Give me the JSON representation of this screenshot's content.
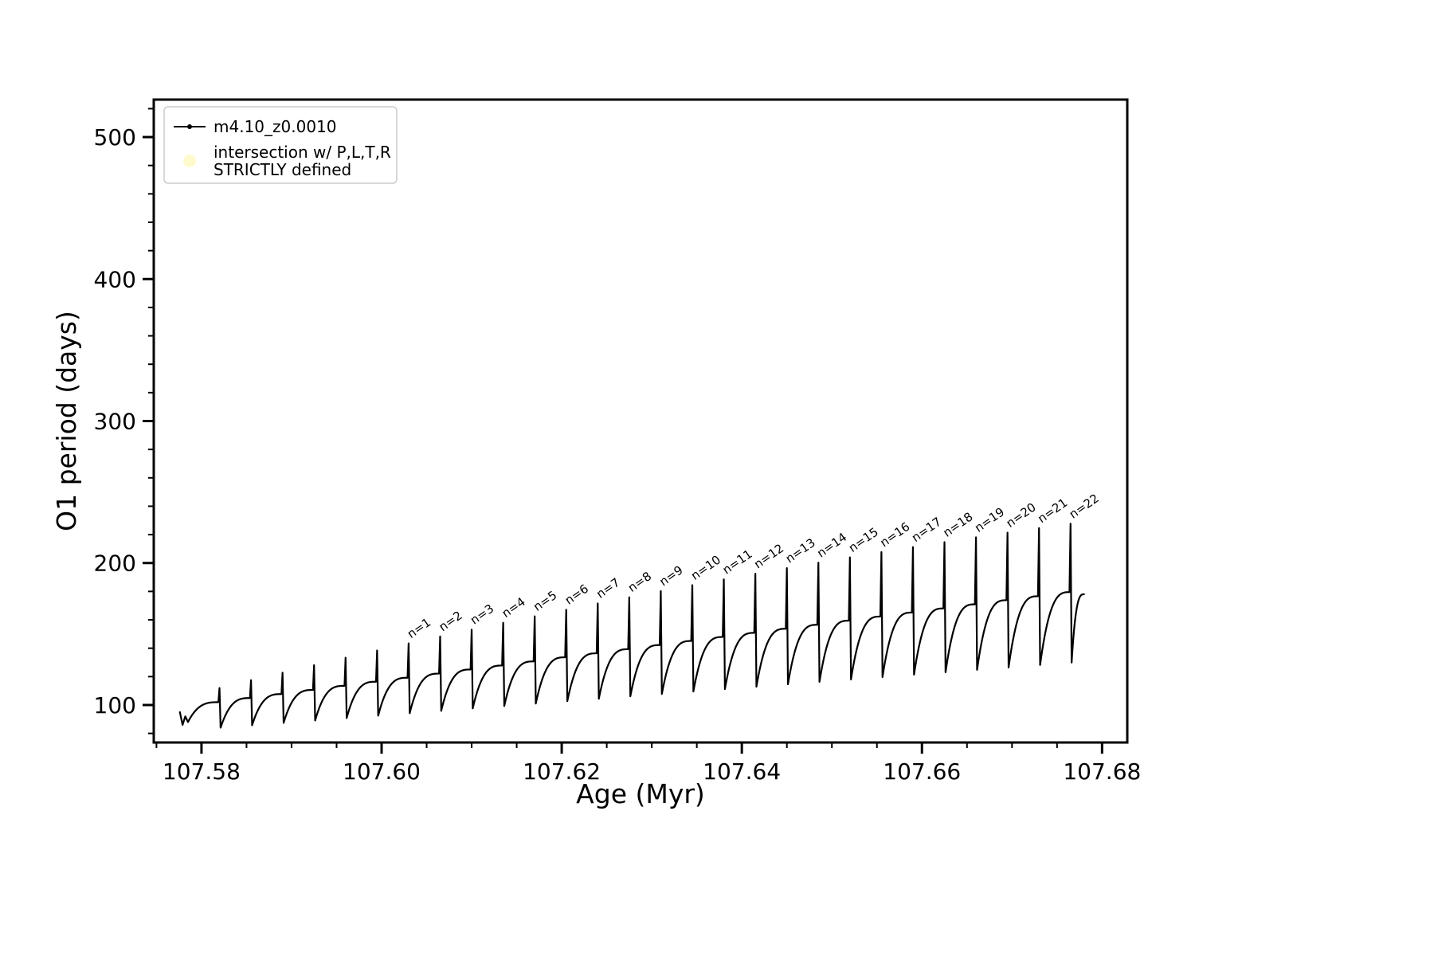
{
  "chart_data": {
    "type": "line",
    "title": "",
    "xlabel": "Age (Myr)",
    "ylabel": "O1 period (days)",
    "xlim": [
      107.5747,
      107.6828
    ],
    "ylim": [
      73.6,
      526.4
    ],
    "xticks": [
      {
        "v": 107.58,
        "label": "107.58"
      },
      {
        "v": 107.6,
        "label": "107.60"
      },
      {
        "v": 107.62,
        "label": "107.62"
      },
      {
        "v": 107.64,
        "label": "107.64"
      },
      {
        "v": 107.66,
        "label": "107.66"
      },
      {
        "v": 107.68,
        "label": "107.68"
      }
    ],
    "yticks": [
      {
        "v": 100,
        "label": "100"
      },
      {
        "v": 200,
        "label": "200"
      },
      {
        "v": 300,
        "label": "300"
      },
      {
        "v": 400,
        "label": "400"
      },
      {
        "v": 500,
        "label": "500"
      }
    ],
    "x_minor": {
      "start": 107.575,
      "step": 0.005,
      "count": 22
    },
    "y_minor": {
      "start": 80,
      "step": 20,
      "end": 520
    },
    "grid": false,
    "legend_position": "upper-left",
    "legend": [
      {
        "label": "m4.10_z0.0010",
        "marker": "line-dot",
        "color": "#000000"
      },
      {
        "label": "intersection w/ P,L,T,R\nSTRICTLY defined",
        "marker": "dot",
        "color": "#fffacd"
      }
    ],
    "series_name": "m4.10_z0.0010",
    "series_color": "#000000",
    "start_points": [
      [
        107.5776,
        95
      ],
      [
        107.5779,
        86
      ],
      [
        107.5782,
        92
      ],
      [
        107.5785,
        88
      ]
    ],
    "cycle": {
      "spike_half_width": 0.00012,
      "rise_samples": 26
    },
    "spikes": [
      {
        "x": 107.582,
        "peak": 112.0,
        "plateau": 102.0,
        "min_after": 84.0,
        "label": null
      },
      {
        "x": 107.5855,
        "peak": 117.5,
        "plateau": 104.9,
        "min_after": 85.7,
        "label": null
      },
      {
        "x": 107.589,
        "peak": 122.8,
        "plateau": 107.7,
        "min_after": 87.4,
        "label": null
      },
      {
        "x": 107.5925,
        "peak": 128.1,
        "plateau": 110.6,
        "min_after": 89.1,
        "label": null
      },
      {
        "x": 107.596,
        "peak": 133.3,
        "plateau": 113.5,
        "min_after": 90.8,
        "label": null
      },
      {
        "x": 107.5995,
        "peak": 138.4,
        "plateau": 116.4,
        "min_after": 92.5,
        "label": null
      },
      {
        "x": 107.603,
        "peak": 143.4,
        "plateau": 119.2,
        "min_after": 94.2,
        "label": "n=1"
      },
      {
        "x": 107.6065,
        "peak": 148.3,
        "plateau": 122.1,
        "min_after": 95.9,
        "label": "n=2"
      },
      {
        "x": 107.61,
        "peak": 153.1,
        "plateau": 125.0,
        "min_after": 97.6,
        "label": "n=3"
      },
      {
        "x": 107.6135,
        "peak": 157.9,
        "plateau": 127.8,
        "min_after": 99.3,
        "label": "n=4"
      },
      {
        "x": 107.617,
        "peak": 162.5,
        "plateau": 130.7,
        "min_after": 101.0,
        "label": "n=5"
      },
      {
        "x": 107.6205,
        "peak": 167.1,
        "plateau": 133.6,
        "min_after": 102.7,
        "label": "n=6"
      },
      {
        "x": 107.624,
        "peak": 171.5,
        "plateau": 136.4,
        "min_after": 104.4,
        "label": "n=7"
      },
      {
        "x": 107.6275,
        "peak": 175.9,
        "plateau": 139.3,
        "min_after": 106.1,
        "label": "n=8"
      },
      {
        "x": 107.631,
        "peak": 180.2,
        "plateau": 142.2,
        "min_after": 107.8,
        "label": "n=9"
      },
      {
        "x": 107.6345,
        "peak": 184.4,
        "plateau": 145.1,
        "min_after": 109.5,
        "label": "n=10"
      },
      {
        "x": 107.638,
        "peak": 188.5,
        "plateau": 147.9,
        "min_after": 111.2,
        "label": "n=11"
      },
      {
        "x": 107.6415,
        "peak": 192.5,
        "plateau": 150.8,
        "min_after": 112.9,
        "label": "n=12"
      },
      {
        "x": 107.645,
        "peak": 196.4,
        "plateau": 153.7,
        "min_after": 114.6,
        "label": "n=13"
      },
      {
        "x": 107.6485,
        "peak": 200.3,
        "plateau": 156.5,
        "min_after": 116.3,
        "label": "n=14"
      },
      {
        "x": 107.652,
        "peak": 204.0,
        "plateau": 159.4,
        "min_after": 118.0,
        "label": "n=15"
      },
      {
        "x": 107.6555,
        "peak": 207.7,
        "plateau": 162.3,
        "min_after": 119.7,
        "label": "n=16"
      },
      {
        "x": 107.659,
        "peak": 211.2,
        "plateau": 165.1,
        "min_after": 121.4,
        "label": "n=17"
      },
      {
        "x": 107.6625,
        "peak": 214.7,
        "plateau": 168.0,
        "min_after": 123.1,
        "label": "n=18"
      },
      {
        "x": 107.666,
        "peak": 218.1,
        "plateau": 170.9,
        "min_after": 124.8,
        "label": "n=19"
      },
      {
        "x": 107.6695,
        "peak": 221.4,
        "plateau": 173.8,
        "min_after": 126.5,
        "label": "n=20"
      },
      {
        "x": 107.673,
        "peak": 224.6,
        "plateau": 176.6,
        "min_after": 128.2,
        "label": "n=21"
      },
      {
        "x": 107.6765,
        "peak": 227.7,
        "plateau": 179.5,
        "min_after": 129.9,
        "label": "n=22"
      }
    ],
    "end": {
      "x": 107.678,
      "y": 178.0
    },
    "annotation_rotation_deg": -35
  }
}
